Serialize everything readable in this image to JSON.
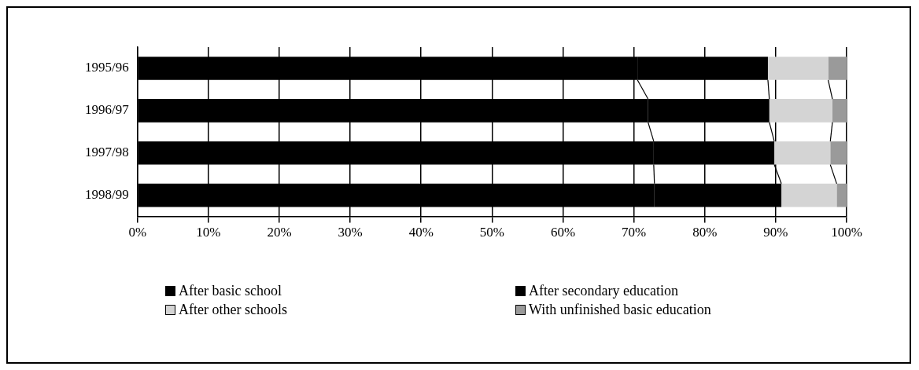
{
  "chart_data": {
    "type": "bar",
    "orientation": "horizontal",
    "stacked": true,
    "categories": [
      "1995/96",
      "1996/97",
      "1997/98",
      "1998/99"
    ],
    "series": [
      {
        "name": "After basic school",
        "color": "#000000",
        "values": [
          70.5,
          72.0,
          72.8,
          72.9
        ]
      },
      {
        "name": "After secondary education",
        "color": "#000000",
        "values": [
          18.4,
          17.1,
          17.0,
          17.9
        ]
      },
      {
        "name": "After other schools",
        "color": "#d4d4d4",
        "values": [
          8.5,
          8.9,
          7.9,
          7.8
        ]
      },
      {
        "name": "With unfinished basic education",
        "color": "#9a9a9a",
        "values": [
          2.6,
          2.0,
          2.3,
          1.4
        ]
      }
    ],
    "xlim": [
      0,
      100
    ],
    "xticks": [
      {
        "value": 0,
        "label": "0%"
      },
      {
        "value": 10,
        "label": "10%"
      },
      {
        "value": 20,
        "label": "20%"
      },
      {
        "value": 30,
        "label": "30%"
      },
      {
        "value": 40,
        "label": "40%"
      },
      {
        "value": 50,
        "label": "50%"
      },
      {
        "value": 60,
        "label": "60%"
      },
      {
        "value": 70,
        "label": "70%"
      },
      {
        "value": 80,
        "label": "80%"
      },
      {
        "value": 90,
        "label": "90%"
      },
      {
        "value": 100,
        "label": "100%"
      }
    ],
    "grid": "x",
    "legend": "bottom"
  }
}
